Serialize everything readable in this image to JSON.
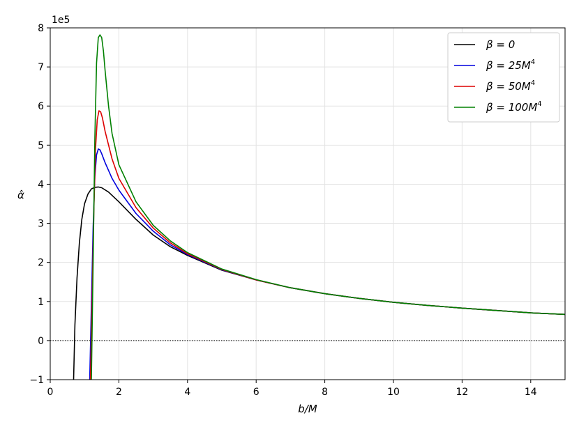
{
  "chart_data": {
    "type": "line",
    "title": "",
    "xlabel": "b/M",
    "ylabel": "α̂",
    "y_multiplier_label": "1e5",
    "xlim": [
      0,
      15
    ],
    "ylim": [
      -100000,
      800000
    ],
    "x_ticks": [
      0,
      2,
      4,
      6,
      8,
      10,
      12,
      14
    ],
    "y_ticks": [
      -100000,
      0,
      100000,
      200000,
      300000,
      400000,
      500000,
      600000,
      700000,
      800000
    ],
    "y_tick_labels": [
      "−1",
      "0",
      "1",
      "2",
      "3",
      "4",
      "5",
      "6",
      "7",
      "8"
    ],
    "grid": true,
    "legend_position": "top-right",
    "reference_line": {
      "y": 0,
      "style": "dotted",
      "color": "#000000"
    },
    "series": [
      {
        "name": "β = 0",
        "legend": {
          "prefix": "β = ",
          "value": "0",
          "sup": ""
        },
        "color": "#000000",
        "x": [
          0.68,
          0.72,
          0.78,
          0.85,
          0.92,
          1.0,
          1.1,
          1.2,
          1.3,
          1.4,
          1.5,
          1.7,
          2.0,
          2.5,
          3.0,
          3.5,
          4.0,
          5.0,
          6.0,
          7.0,
          8.0,
          9.0,
          10.0,
          11.0,
          12.0,
          13.0,
          14.0,
          15.0
        ],
        "y": [
          -100000,
          40000,
          160000,
          250000,
          310000,
          350000,
          375000,
          388000,
          392000,
          393000,
          391000,
          380000,
          355000,
          310000,
          270000,
          240000,
          218000,
          180000,
          155000,
          135000,
          120000,
          108000,
          98000,
          90000,
          83000,
          77000,
          71000,
          67000
        ]
      },
      {
        "name": "β = 25M⁴",
        "legend": {
          "prefix": "β = ",
          "value": "25M",
          "sup": "4"
        },
        "color": "#0000dd",
        "x": [
          1.15,
          1.2,
          1.25,
          1.3,
          1.35,
          1.4,
          1.45,
          1.5,
          1.6,
          1.8,
          2.0,
          2.5,
          3.0,
          3.5,
          4.0,
          5.0,
          6.0,
          7.0,
          8.0,
          9.0,
          10.0,
          11.0,
          12.0,
          13.0,
          14.0,
          15.0
        ],
        "y": [
          -100000,
          90000,
          290000,
          420000,
          475000,
          490000,
          488000,
          478000,
          455000,
          415000,
          385000,
          325000,
          280000,
          245000,
          220000,
          181000,
          155000,
          135000,
          120000,
          108000,
          98000,
          90000,
          83000,
          77000,
          71000,
          67000
        ]
      },
      {
        "name": "β = 50M⁴",
        "legend": {
          "prefix": "β = ",
          "value": "50M",
          "sup": "4"
        },
        "color": "#dd0000",
        "x": [
          1.17,
          1.22,
          1.27,
          1.32,
          1.37,
          1.42,
          1.47,
          1.52,
          1.6,
          1.8,
          2.0,
          2.5,
          3.0,
          3.5,
          4.0,
          5.0,
          6.0,
          7.0,
          8.0,
          9.0,
          10.0,
          11.0,
          12.0,
          13.0,
          14.0,
          15.0
        ],
        "y": [
          -100000,
          100000,
          330000,
          490000,
          565000,
          588000,
          585000,
          570000,
          535000,
          465000,
          415000,
          340000,
          288000,
          250000,
          222000,
          182000,
          155000,
          135000,
          120000,
          108000,
          98000,
          90000,
          83000,
          77000,
          71000,
          67000
        ]
      },
      {
        "name": "β = 100M⁴",
        "legend": {
          "prefix": "β = ",
          "value": "100M",
          "sup": "4"
        },
        "color": "#008000",
        "x": [
          1.2,
          1.25,
          1.3,
          1.35,
          1.4,
          1.45,
          1.5,
          1.55,
          1.6,
          1.7,
          1.8,
          2.0,
          2.5,
          3.0,
          3.5,
          4.0,
          5.0,
          6.0,
          7.0,
          8.0,
          9.0,
          10.0,
          11.0,
          12.0,
          13.0,
          14.0,
          15.0
        ],
        "y": [
          -100000,
          200000,
          520000,
          710000,
          775000,
          782000,
          775000,
          740000,
          690000,
          600000,
          530000,
          450000,
          355000,
          295000,
          255000,
          225000,
          183000,
          156000,
          135000,
          120000,
          108000,
          98000,
          90000,
          83000,
          77000,
          71000,
          67000
        ]
      }
    ]
  }
}
